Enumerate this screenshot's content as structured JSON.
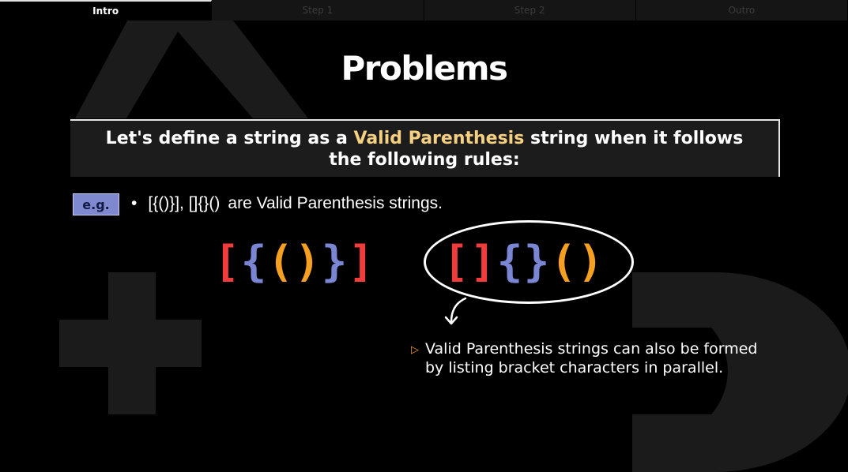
{
  "tabs": [
    {
      "label": "Intro",
      "active": true
    },
    {
      "label": "Step 1",
      "active": false
    },
    {
      "label": "Step 2",
      "active": false
    },
    {
      "label": "Outro",
      "active": false
    }
  ],
  "title": "Problems",
  "rule": {
    "line1_before": "Let's define a string as a ",
    "line1_highlight": "Valid Parenthesis",
    "line1_after": " string when it follows",
    "line2": "the following rules:"
  },
  "example": {
    "badge": "e.g.",
    "bullet": "•",
    "codes": "[{()}], []{}()",
    "text": "are Valid Parenthesis strings."
  },
  "bracket_group_1": [
    "[",
    "{",
    "(",
    ")",
    "}",
    "]"
  ],
  "bracket_group_2": [
    "[",
    "]",
    "{",
    "}",
    "(",
    ")"
  ],
  "note": {
    "icon": "triangle-right-outline-icon",
    "line1": "Valid Parenthesis strings can also be formed",
    "line2": "by listing bracket characters in parallel."
  },
  "colors": {
    "square": "#f03c3c",
    "curly": "#7a86d4",
    "round": "#f5a020",
    "highlight": "#f5d080",
    "badge": "#7f89cf"
  }
}
